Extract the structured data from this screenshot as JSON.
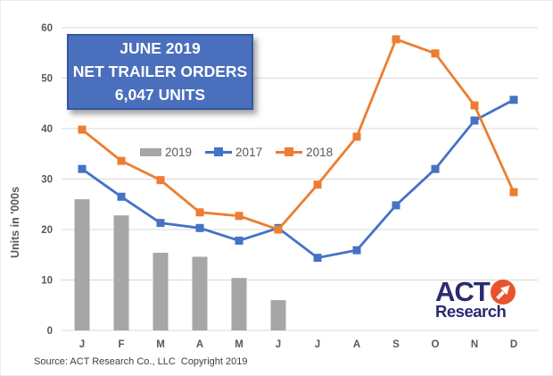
{
  "title_box": {
    "line1": "JUNE 2019",
    "line2": "NET TRAILER ORDERS",
    "line3": "6,047 UNITS"
  },
  "chart_data": {
    "type": "combo",
    "title": "JUNE 2019 NET TRAILER ORDERS 6,047 UNITS",
    "categories": [
      "J",
      "F",
      "M",
      "A",
      "M",
      "J",
      "J",
      "A",
      "S",
      "O",
      "N",
      "D"
    ],
    "series": [
      {
        "name": "2019",
        "type": "bar",
        "color": "#a6a6a6",
        "values": [
          26,
          22.8,
          15.4,
          14.6,
          10.4,
          6.0,
          null,
          null,
          null,
          null,
          null,
          null
        ]
      },
      {
        "name": "2017",
        "type": "line",
        "color": "#4472c4",
        "values": [
          32,
          26.5,
          21.3,
          20.3,
          17.8,
          20.3,
          14.4,
          15.9,
          24.8,
          32,
          41.6,
          45.7
        ]
      },
      {
        "name": "2018",
        "type": "line",
        "color": "#ed7d31",
        "values": [
          39.8,
          33.6,
          29.8,
          23.4,
          22.7,
          20,
          28.9,
          38.4,
          57.7,
          54.9,
          44.6,
          27.4
        ]
      }
    ],
    "xlabel": "",
    "ylabel": "Units in '000s",
    "ylim": [
      0,
      60
    ],
    "ytick_step": 10,
    "grid": true,
    "legend_position": "top-center"
  },
  "legend": {
    "items": [
      "2019",
      "2017",
      "2018"
    ]
  },
  "logo": {
    "act": "ACT",
    "research": "Research"
  },
  "source": "Source: ACT Research Co., LLC  Copyright 2019",
  "colors": {
    "bar_2019": "#a6a6a6",
    "line_2017": "#4472c4",
    "line_2018": "#ed7d31",
    "gridline": "#d9d9d9",
    "axis_text": "#595959",
    "title_box_bg": "#4a6fbd",
    "title_box_border": "#3555a4",
    "logo_navy": "#2b2a72",
    "logo_orange": "#e8532c"
  }
}
